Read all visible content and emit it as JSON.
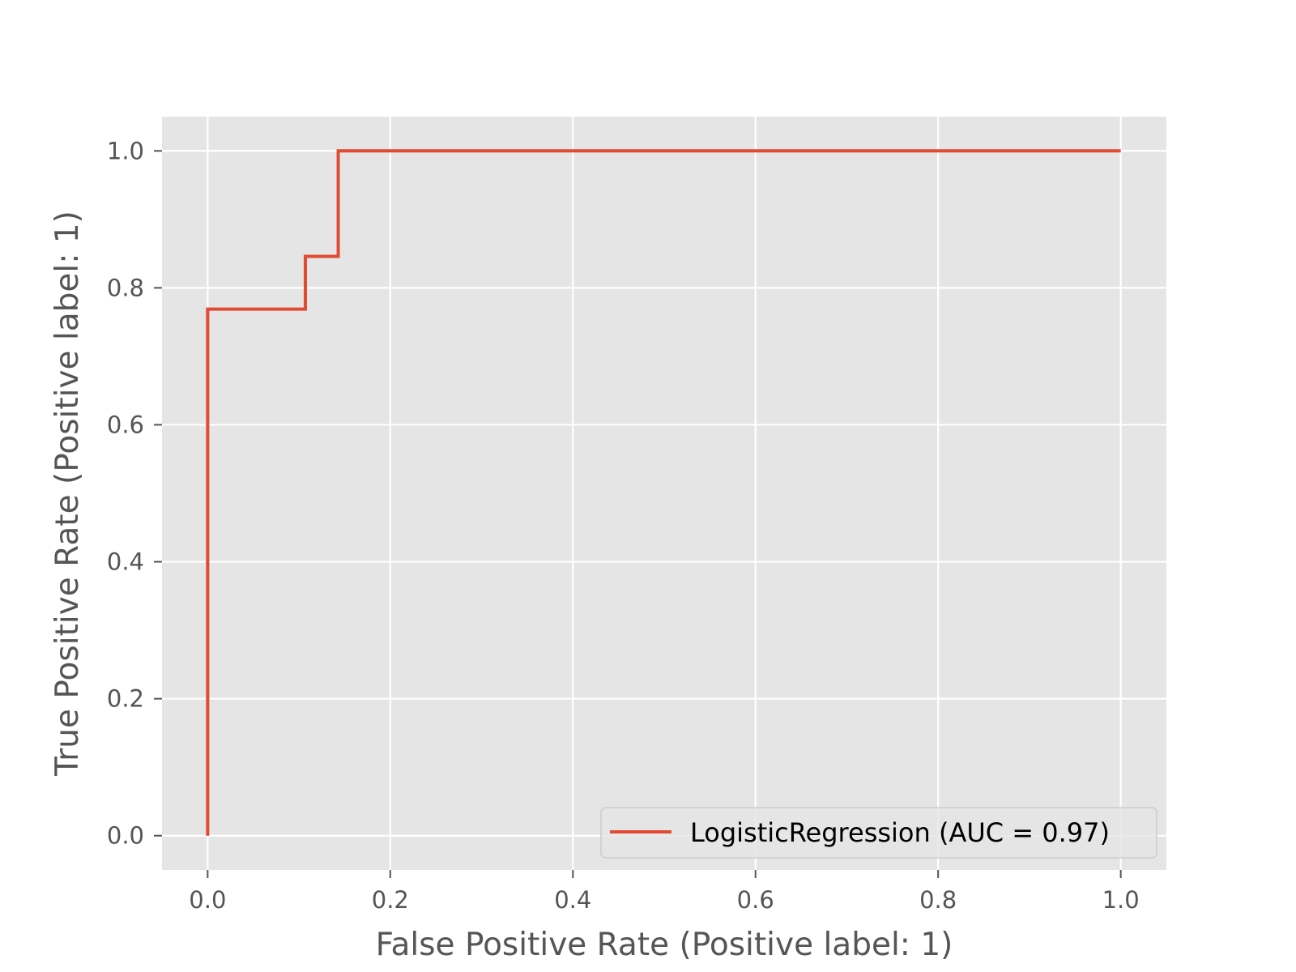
{
  "chart_data": {
    "type": "line",
    "title": "",
    "xlabel": "False Positive Rate (Positive label: 1)",
    "ylabel": "True Positive Rate (Positive label: 1)",
    "xlim": [
      -0.05,
      1.05
    ],
    "ylim": [
      -0.05,
      1.05
    ],
    "xticks": [
      0.0,
      0.2,
      0.4,
      0.6,
      0.8,
      1.0
    ],
    "yticks": [
      0.0,
      0.2,
      0.4,
      0.6,
      0.8,
      1.0
    ],
    "xtick_labels": [
      "0.0",
      "0.2",
      "0.4",
      "0.6",
      "0.8",
      "1.0"
    ],
    "ytick_labels": [
      "0.0",
      "0.2",
      "0.4",
      "0.6",
      "0.8",
      "1.0"
    ],
    "grid": true,
    "legend_position": "bottom-right",
    "background_color": "#e5e5e5",
    "grid_color": "#ffffff",
    "series": [
      {
        "name": "LogisticRegression (AUC = 0.97)",
        "color": "#e24a33",
        "x": [
          0.0,
          0.0,
          0.107,
          0.107,
          0.143,
          0.143,
          1.0
        ],
        "y": [
          0.0,
          0.769,
          0.769,
          0.846,
          0.846,
          1.0,
          1.0
        ]
      }
    ]
  }
}
